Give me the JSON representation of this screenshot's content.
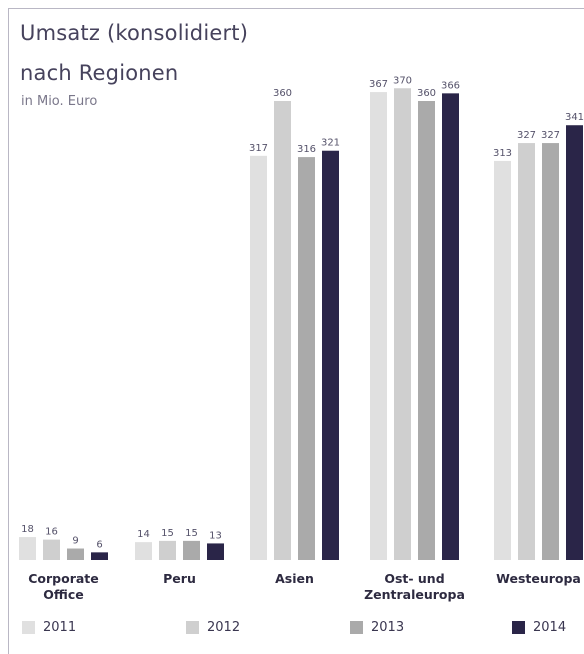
{
  "chart_data": {
    "type": "bar",
    "title": "Umsatz (konsolidiert)",
    "title_line2": "nach Regionen",
    "subtitle": "in Mio. Euro",
    "categories": [
      [
        "Corporate",
        "Office"
      ],
      [
        "Peru"
      ],
      [
        "Asien"
      ],
      [
        "Ost- und",
        "Zentraleuropa"
      ],
      [
        "Westeuropa"
      ]
    ],
    "series": [
      {
        "name": "2011",
        "color": "#e0e0e0",
        "values": [
          18,
          14,
          317,
          367,
          313
        ]
      },
      {
        "name": "2012",
        "color": "#cfcfcf",
        "values": [
          16,
          15,
          360,
          370,
          327
        ]
      },
      {
        "name": "2013",
        "color": "#aaaaaa",
        "values": [
          9,
          15,
          316,
          360,
          327
        ]
      },
      {
        "name": "2014",
        "color": "#2a2548",
        "values": [
          6,
          13,
          321,
          366,
          341
        ]
      }
    ],
    "value_labels": [
      [
        "18",
        "16",
        "9",
        "6"
      ],
      [
        "14",
        "15",
        "15",
        "13"
      ],
      [
        "317",
        "360",
        "316",
        "321"
      ],
      [
        "367",
        "370",
        "360",
        "366"
      ],
      [
        "313",
        "327",
        "327",
        "341"
      ]
    ],
    "ylim": [
      0,
      400
    ],
    "grid": false,
    "legend_position": "bottom"
  }
}
